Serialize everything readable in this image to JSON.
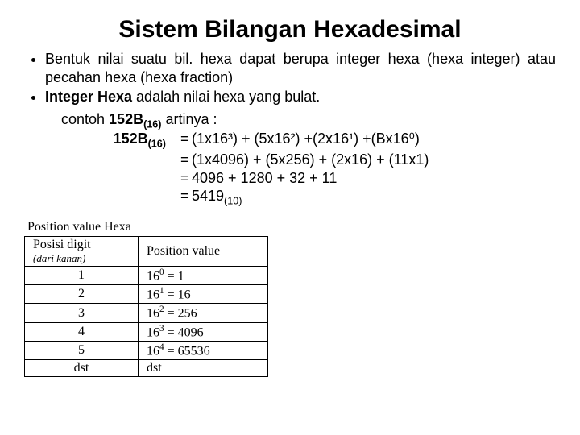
{
  "title": "Sistem Bilangan Hexadesimal",
  "bullets": {
    "b1_part1": "Bentuk nilai suatu bil. hexa dapat berupa integer hexa (hexa integer) atau pecahan hexa (hexa fraction)",
    "b2_prefix": "Integer Hexa",
    "b2_rest": " adalah nilai hexa yang bulat."
  },
  "example": {
    "intro_a": "contoh ",
    "intro_num": "152B",
    "intro_sub": "(16)",
    "intro_b": " artinya :",
    "lhs_num": "152B",
    "lhs_sub": "(16)",
    "eq": "=",
    "line1": "(1x16³) + (5x16²) +(2x16¹) +(Bx16⁰)",
    "line2": "(1x4096) + (5x256) + (2x16) + (11x1)",
    "line3": "4096 + 1280 + 32 + 11",
    "line4_num": "5419",
    "line4_sub": "(10)"
  },
  "table": {
    "caption": "Position value Hexa",
    "header_left_top": "Posisi digit",
    "header_left_bottom": "(dari kanan)",
    "header_right": "Position value",
    "rows": [
      {
        "pos": "1",
        "base": "16",
        "exp": "0",
        "val": " = 1"
      },
      {
        "pos": "2",
        "base": "16",
        "exp": "1",
        "val": " = 16"
      },
      {
        "pos": "3",
        "base": "16",
        "exp": "2",
        "val": " = 256"
      },
      {
        "pos": "4",
        "base": "16",
        "exp": "3",
        "val": " = 4096"
      },
      {
        "pos": "5",
        "base": "16",
        "exp": "4",
        "val": " = 65536"
      },
      {
        "pos": "dst",
        "base": "dst",
        "exp": "",
        "val": ""
      }
    ]
  }
}
